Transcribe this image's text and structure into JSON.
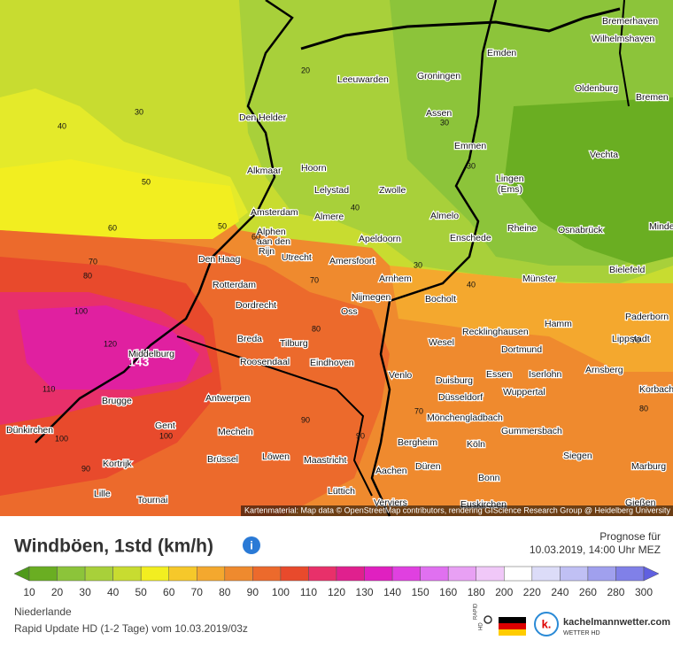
{
  "map": {
    "cities": [
      "Bremerhaven",
      "Wilhelmshaven",
      "Emden",
      "Leeuwarden",
      "Groningen",
      "Oldenburg",
      "Bremen",
      "Den Helder",
      "Assen",
      "Emmen",
      "Vechta",
      "Alkmaar",
      "Hoorn",
      "Lingen",
      "(Ems)",
      "Lelystad",
      "Zwolle",
      "Amsterdam",
      "Almere",
      "Almelo",
      "Alphen",
      "aan den",
      "Rijn",
      "Apeldoorn",
      "Enschede",
      "Rheine",
      "Osnabrück",
      "Minden",
      "Den Haag",
      "Utrecht",
      "Amersfoort",
      "Arnhem",
      "Bielefeld",
      "Münster",
      "Rotterdam",
      "Nijmegen",
      "Bocholt",
      "Dordrecht",
      "Oss",
      "Paderborn",
      "Hamm",
      "Recklinghausen",
      "Lippstadt",
      "Breda",
      "Tilburg",
      "Wesel",
      "Middelburg",
      "Dortmund",
      "Roosendaal",
      "Eindhoven",
      "Arnsberg",
      "Essen",
      "Iserlohn",
      "Venlo",
      "Duisburg",
      "Korbach",
      "Wuppertal",
      "Düsseldorf",
      "Antwerpen",
      "Brugge",
      "Mönchengladbach",
      "Gent",
      "Gummersbach",
      "Dünkirchen",
      "Mecheln",
      "Bergheim",
      "Köln",
      "Siegen",
      "Löwen",
      "Maastricht",
      "Kortrijk",
      "Brüssel",
      "Düren",
      "Aachen",
      "Marburg",
      "Bonn",
      "Lüttich",
      "Lille",
      "Tournai",
      "Verviers",
      "Euskirchen",
      "Gießen"
    ],
    "contour_labels": [
      "20",
      "30",
      "40",
      "50",
      "60",
      "70",
      "80",
      "100",
      "120",
      "110",
      "90",
      "30",
      "40",
      "60",
      "70",
      "80",
      "90",
      "100",
      "90",
      "70",
      "30",
      "40",
      "50",
      "30",
      "70",
      "80",
      "100"
    ],
    "max_label": "143",
    "attribution": "Kartenmaterial: Map data © OpenStreetMap contributors, rendering GIScience Research Group @ Heidelberg University"
  },
  "legend": {
    "title": "Windböen, 1std (km/h)",
    "info": "i",
    "forecast_label": "Prognose für",
    "forecast_time": "10.03.2019, 14:00 Uhr MEZ",
    "ticks": [
      "10",
      "20",
      "30",
      "40",
      "50",
      "60",
      "70",
      "80",
      "90",
      "100",
      "110",
      "120",
      "130",
      "140",
      "150",
      "160",
      "180",
      "200",
      "220",
      "240",
      "260",
      "280",
      "300"
    ],
    "colors": [
      "#4f9a1c",
      "#6aae22",
      "#8cc43a",
      "#a8d03a",
      "#c8dc30",
      "#f2ee20",
      "#f6c82a",
      "#f4a82e",
      "#ef8a2e",
      "#ec6a2c",
      "#e84a2c",
      "#e8306a",
      "#e0208e",
      "#e020c0",
      "#e040e0",
      "#e070f0",
      "#e8a0f4",
      "#f0c8f8",
      "#ffffff",
      "#dcdcf8",
      "#c0c0f4",
      "#a0a0ee",
      "#8080e8",
      "#6060e0"
    ]
  },
  "footer": {
    "region": "Niederlande",
    "run": "Rapid Update HD (1-2 Tage) vom 10.03.2019/03z",
    "badge_top": "RAPID",
    "badge_bottom": "HD",
    "brand": "kachelmannwetter.com",
    "brand_sub": "WETTER HD",
    "logo": "k."
  }
}
